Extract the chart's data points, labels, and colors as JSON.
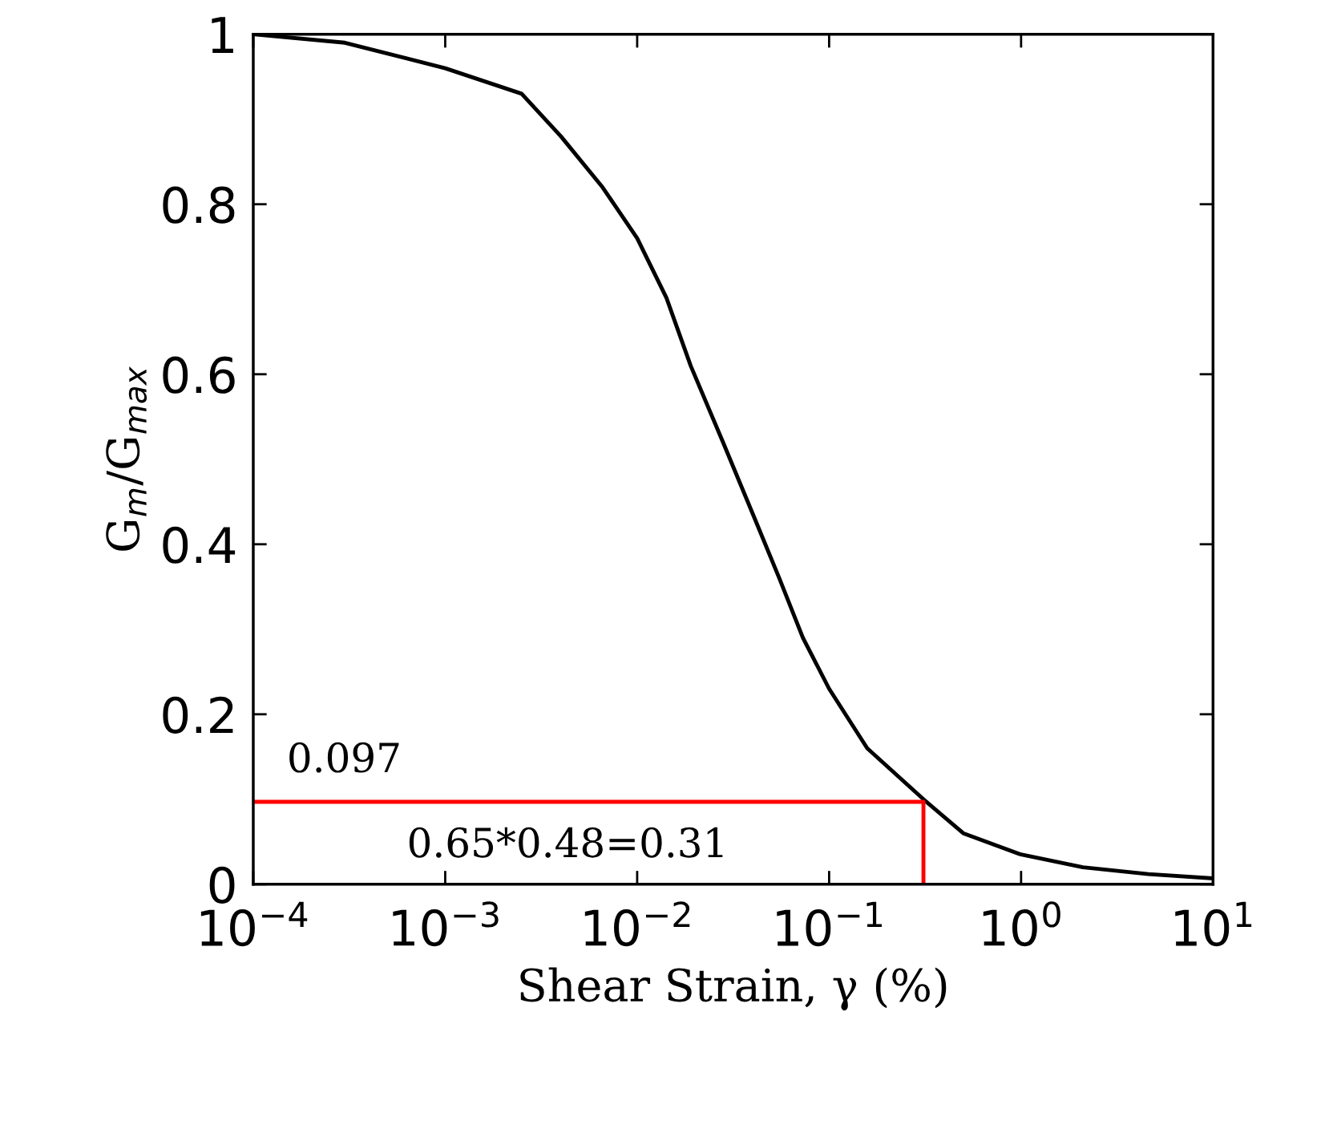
{
  "chart_data": {
    "type": "line",
    "xlabel": "Shear Strain, γ (%)",
    "ylabel": "G$_{m}$/G$_{max}$",
    "log": "x",
    "xlim": [
      0.0001,
      10
    ],
    "xticks": [
      {
        "value": 0.0001,
        "label": "10$^{−4}$"
      },
      {
        "value": 0.001,
        "label": "10$^{−3}$"
      },
      {
        "value": 0.01,
        "label": "10$^{−2}$"
      },
      {
        "value": 0.1,
        "label": "10$^{−1}$"
      },
      {
        "value": 1,
        "label": "10$^{0}$"
      },
      {
        "value": 10,
        "label": "10$^{1}$"
      }
    ],
    "ylim": [
      0,
      1
    ],
    "yticks": [
      0,
      0.2,
      0.4,
      0.6,
      0.8,
      1
    ],
    "grid": false,
    "legend": false,
    "marker": "none",
    "line_style": "solid",
    "series": [
      {
        "color": "#000000",
        "x": [
          0.0001,
          0.0003,
          0.001,
          0.0025,
          0.004,
          0.0066,
          0.01,
          0.0142,
          0.019,
          0.028,
          0.041,
          0.055,
          0.073,
          0.1,
          0.158,
          0.31,
          0.5,
          1,
          2.1,
          4.6,
          10
        ],
        "values": [
          1.0,
          0.99,
          0.96,
          0.93,
          0.88,
          0.82,
          0.76,
          0.69,
          0.61,
          0.52,
          0.43,
          0.36,
          0.29,
          0.23,
          0.16,
          0.1,
          0.06,
          0.035,
          0.02,
          0.012,
          0.007
        ]
      },
      {
        "color": "#ff0000",
        "x": [
          0.0001,
          0.31,
          0.31
        ],
        "values": [
          0.097,
          0.097,
          0
        ]
      }
    ],
    "annotations": [
      "0.097",
      "0.65*0.48=0.31"
    ]
  }
}
